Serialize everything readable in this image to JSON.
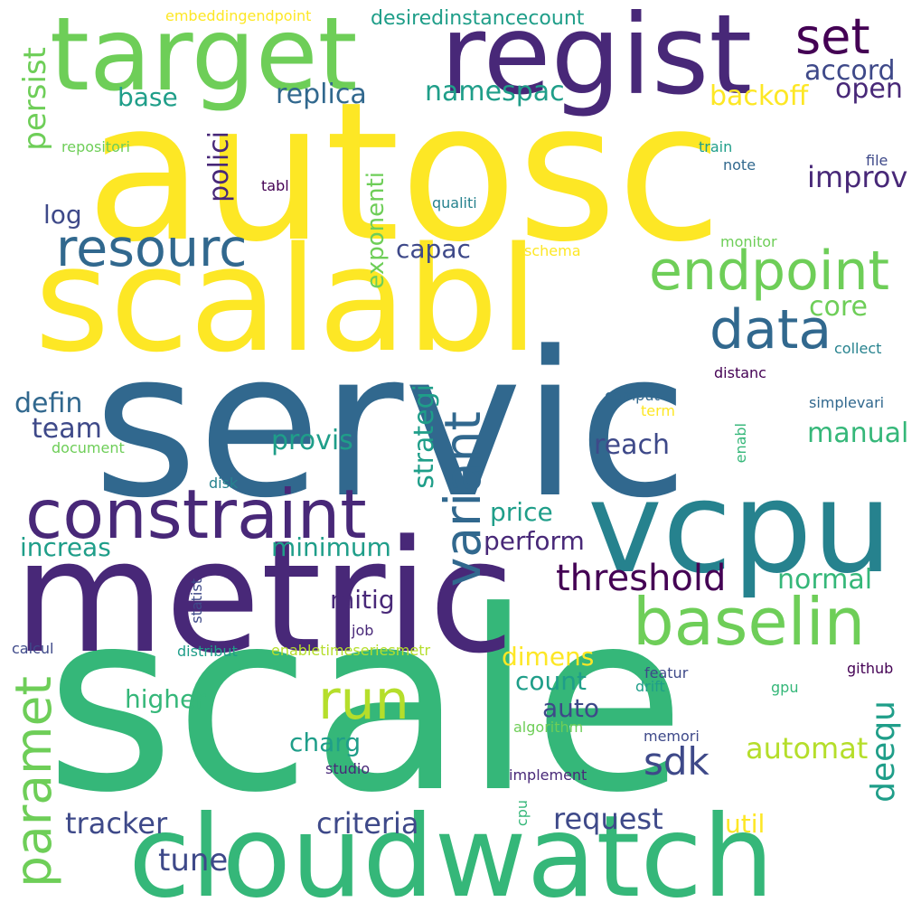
{
  "colors": {
    "yellow": "#fde725",
    "lime": "#b5de2b",
    "lightgreen": "#6ece58",
    "green": "#35b779",
    "teal": "#1f9e89",
    "tealblue": "#26828e",
    "blue": "#31688e",
    "slate": "#3e4989",
    "indigo": "#482878",
    "purple": "#440154"
  },
  "words": [
    {
      "id": "scale",
      "text": "scale",
      "color": "green"
    },
    {
      "id": "servic",
      "text": "servic",
      "color": "blue"
    },
    {
      "id": "autosc",
      "text": "autosc",
      "color": "yellow"
    },
    {
      "id": "metric",
      "text": "metric",
      "color": "indigo"
    },
    {
      "id": "scalabl",
      "text": "scalabl",
      "color": "yellow"
    },
    {
      "id": "cloudwatch",
      "text": "cloudwatch",
      "color": "green"
    },
    {
      "id": "vcpu",
      "text": "vcpu",
      "color": "tealblue"
    },
    {
      "id": "regist",
      "text": "regist",
      "color": "indigo"
    },
    {
      "id": "target",
      "text": "target",
      "color": "lightgreen"
    },
    {
      "id": "constraint",
      "text": "constraint",
      "color": "indigo"
    },
    {
      "id": "baselin",
      "text": "baselin",
      "color": "lightgreen"
    },
    {
      "id": "resourc",
      "text": "resourc",
      "color": "blue"
    },
    {
      "id": "endpoint",
      "text": "endpoint",
      "color": "lightgreen"
    },
    {
      "id": "data",
      "text": "data",
      "color": "blue"
    },
    {
      "id": "variant",
      "text": "variant",
      "color": "blue"
    },
    {
      "id": "run",
      "text": "run",
      "color": "lime"
    },
    {
      "id": "paramet",
      "text": "paramet",
      "color": "lightgreen"
    },
    {
      "id": "set",
      "text": "set",
      "color": "purple"
    },
    {
      "id": "threshold",
      "text": "threshold",
      "color": "purple"
    },
    {
      "id": "persist",
      "text": "persist",
      "color": "lightgreen"
    },
    {
      "id": "strategi",
      "text": "strategi",
      "color": "teal"
    },
    {
      "id": "deequ",
      "text": "deequ",
      "color": "teal"
    },
    {
      "id": "sdk",
      "text": "sdk",
      "color": "slate"
    },
    {
      "id": "tune",
      "text": "tune",
      "color": "slate"
    },
    {
      "id": "criteria",
      "text": "criteria",
      "color": "slate"
    },
    {
      "id": "tracker",
      "text": "tracker",
      "color": "slate"
    },
    {
      "id": "request",
      "text": "request",
      "color": "slate"
    },
    {
      "id": "automat",
      "text": "automat",
      "color": "lime"
    },
    {
      "id": "replica",
      "text": "replica",
      "color": "blue"
    },
    {
      "id": "namespac",
      "text": "namespac",
      "color": "teal"
    },
    {
      "id": "accord",
      "text": "accord",
      "color": "slate"
    },
    {
      "id": "open",
      "text": "open",
      "color": "indigo"
    },
    {
      "id": "backoff",
      "text": "backoff",
      "color": "yellow"
    },
    {
      "id": "base",
      "text": "base",
      "color": "teal"
    },
    {
      "id": "improv",
      "text": "improv",
      "color": "indigo"
    },
    {
      "id": "polici",
      "text": "polici",
      "color": "indigo"
    },
    {
      "id": "exponenti",
      "text": "exponenti",
      "color": "lightgreen"
    },
    {
      "id": "log",
      "text": "log",
      "color": "slate"
    },
    {
      "id": "capac",
      "text": "capac",
      "color": "slate"
    },
    {
      "id": "core",
      "text": "core",
      "color": "lightgreen"
    },
    {
      "id": "defin",
      "text": "defin",
      "color": "blue"
    },
    {
      "id": "team",
      "text": "team",
      "color": "slate"
    },
    {
      "id": "provis",
      "text": "provis",
      "color": "teal"
    },
    {
      "id": "reach",
      "text": "reach",
      "color": "slate"
    },
    {
      "id": "manual",
      "text": "manual",
      "color": "green"
    },
    {
      "id": "price",
      "text": "price",
      "color": "teal"
    },
    {
      "id": "perform",
      "text": "perform",
      "color": "indigo"
    },
    {
      "id": "increas",
      "text": "increas",
      "color": "teal"
    },
    {
      "id": "minimum",
      "text": "minimum",
      "color": "teal"
    },
    {
      "id": "mitig",
      "text": "mitig",
      "color": "indigo"
    },
    {
      "id": "normal",
      "text": "normal",
      "color": "green"
    },
    {
      "id": "dimens",
      "text": "dimens",
      "color": "yellow"
    },
    {
      "id": "count",
      "text": "count",
      "color": "teal"
    },
    {
      "id": "auto",
      "text": "auto",
      "color": "slate"
    },
    {
      "id": "higher",
      "text": "higher",
      "color": "green"
    },
    {
      "id": "charg",
      "text": "charg",
      "color": "teal"
    },
    {
      "id": "util",
      "text": "util",
      "color": "yellow"
    },
    {
      "id": "embeddingendpoint",
      "text": "embeddingendpoint",
      "color": "yellow"
    },
    {
      "id": "desiredinstancecount",
      "text": "desiredinstancecount",
      "color": "teal"
    },
    {
      "id": "repositori",
      "text": "repositori",
      "color": "lightgreen"
    },
    {
      "id": "train",
      "text": "train",
      "color": "teal"
    },
    {
      "id": "note",
      "text": "note",
      "color": "blue"
    },
    {
      "id": "file",
      "text": "file",
      "color": "slate"
    },
    {
      "id": "tabl",
      "text": "tabl",
      "color": "purple"
    },
    {
      "id": "qualiti",
      "text": "qualiti",
      "color": "tealblue"
    },
    {
      "id": "schema",
      "text": "schema",
      "color": "yellow"
    },
    {
      "id": "monitor",
      "text": "monitor",
      "color": "lightgreen"
    },
    {
      "id": "collect",
      "text": "collect",
      "color": "tealblue"
    },
    {
      "id": "distanc",
      "text": "distanc",
      "color": "purple"
    },
    {
      "id": "comput",
      "text": "comput",
      "color": "blue"
    },
    {
      "id": "term",
      "text": "term",
      "color": "yellow"
    },
    {
      "id": "simplevari",
      "text": "simplevari",
      "color": "blue"
    },
    {
      "id": "enabl",
      "text": "enabl",
      "color": "green"
    },
    {
      "id": "document",
      "text": "document",
      "color": "lightgreen"
    },
    {
      "id": "disk",
      "text": "disk",
      "color": "tealblue"
    },
    {
      "id": "statist",
      "text": "statist",
      "color": "slate"
    },
    {
      "id": "job",
      "text": "job",
      "color": "indigo"
    },
    {
      "id": "calcul",
      "text": "calcul",
      "color": "slate"
    },
    {
      "id": "distribut",
      "text": "distribut",
      "color": "teal"
    },
    {
      "id": "enabletimeseriesmetr",
      "text": "enabletimeseriesmetr",
      "color": "lime"
    },
    {
      "id": "featur",
      "text": "featur",
      "color": "slate"
    },
    {
      "id": "drift",
      "text": "drift",
      "color": "teal"
    },
    {
      "id": "github",
      "text": "github",
      "color": "purple"
    },
    {
      "id": "gpu",
      "text": "gpu",
      "color": "green"
    },
    {
      "id": "algorithm",
      "text": "algorithm",
      "color": "lightgreen"
    },
    {
      "id": "memori",
      "text": "memori",
      "color": "slate"
    },
    {
      "id": "studio",
      "text": "studio",
      "color": "indigo"
    },
    {
      "id": "implement",
      "text": "implement",
      "color": "indigo"
    },
    {
      "id": "cpu",
      "text": "cpu",
      "color": "green"
    }
  ]
}
